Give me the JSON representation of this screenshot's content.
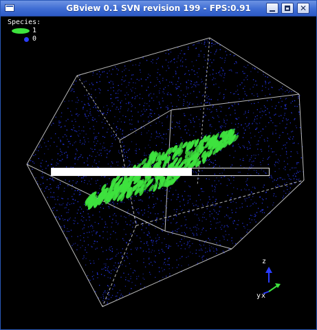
{
  "window": {
    "title": "GBview 0.1 SVN revision 199 - FPS:0.91",
    "buttons": {
      "minimize_icon": "minimize-icon",
      "maximize_icon": "maximize-icon",
      "close_label": "✕"
    }
  },
  "legend": {
    "heading": "Species:",
    "items": [
      {
        "label": "1",
        "color": "#3ee23e",
        "shape": "ellipse"
      },
      {
        "label": "0",
        "color": "#2a3cff",
        "shape": "dot"
      }
    ]
  },
  "progress": {
    "fraction": 0.645
  },
  "axes": {
    "z": "z",
    "y": "y",
    "x": "x"
  },
  "colors": {
    "box_edges": "#dcdcdc",
    "blue_particles": "#2a3cff",
    "green_particles": "#3ee23e",
    "background": "#000000"
  }
}
